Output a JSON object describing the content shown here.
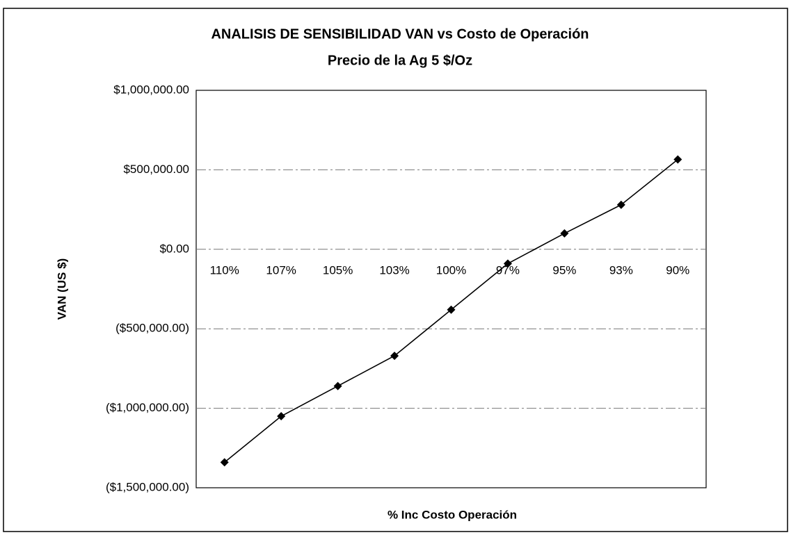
{
  "chart_data": {
    "type": "line",
    "title": "ANALISIS DE SENSIBILIDAD VAN  vs Costo de Operación",
    "subtitle": "Precio de la Ag  5 $/Oz",
    "x_label": "% Inc Costo Operación",
    "y_label": "VAN (US $)",
    "categories": [
      "110%",
      "107%",
      "105%",
      "103%",
      "100%",
      "97%",
      "95%",
      "93%",
      "90%"
    ],
    "series": [
      {
        "name": "VAN",
        "color": "#000000",
        "values": [
          -1340000,
          -1050000,
          -860000,
          -670000,
          -380000,
          -90000,
          100000,
          280000,
          565000
        ]
      }
    ],
    "ylim": [
      -1500000,
      1000000
    ],
    "yticks": [
      {
        "value": -1500000,
        "label": "($1,500,000.00)"
      },
      {
        "value": -1000000,
        "label": "($1,000,000.00)"
      },
      {
        "value": -500000,
        "label": "($500,000.00)"
      },
      {
        "value": 0,
        "label": "$0.00"
      },
      {
        "value": 500000,
        "label": "$500,000.00"
      },
      {
        "value": 1000000,
        "label": "$1,000,000.00"
      }
    ],
    "grid": true
  }
}
